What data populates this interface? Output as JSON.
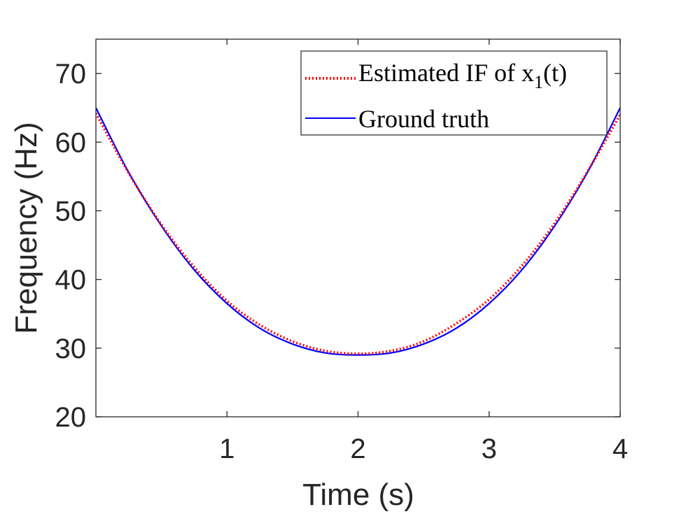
{
  "chart_data": {
    "type": "line",
    "xlabel": "Time (s)",
    "ylabel": "Frequency (Hz)",
    "xlim": [
      0,
      4
    ],
    "ylim": [
      20,
      75
    ],
    "xticks": [
      1,
      2,
      3,
      4
    ],
    "yticks": [
      20,
      30,
      40,
      50,
      60,
      70
    ],
    "grid": false,
    "legend_position": "top-right",
    "series": [
      {
        "name": "Estimated IF of x1(t)",
        "legend_main": "Estimated IF of x",
        "legend_sub": "1",
        "legend_tail": "(t)",
        "color": "#ff0000",
        "style": "dotted",
        "x": [
          0,
          0.25,
          0.5,
          0.75,
          1.0,
          1.25,
          1.5,
          1.75,
          2.0,
          2.25,
          2.5,
          2.75,
          3.0,
          3.25,
          3.5,
          3.75,
          4.0
        ],
        "y": [
          64.2,
          55.5,
          48.0,
          41.8,
          36.9,
          33.4,
          31.0,
          29.6,
          29.2,
          29.6,
          31.0,
          33.6,
          37.1,
          42.0,
          48.2,
          55.7,
          64.0
        ]
      },
      {
        "name": "Ground truth",
        "color": "#0000ff",
        "style": "solid",
        "x": [
          0,
          0.25,
          0.5,
          0.75,
          1.0,
          1.25,
          1.5,
          1.75,
          2.0,
          2.25,
          2.5,
          2.75,
          3.0,
          3.25,
          3.5,
          3.75,
          4.0
        ],
        "y": [
          65.0,
          55.6,
          47.8,
          41.4,
          36.5,
          32.9,
          30.6,
          29.3,
          29.0,
          29.3,
          30.6,
          32.9,
          36.5,
          41.4,
          47.8,
          55.6,
          65.0
        ]
      }
    ]
  }
}
